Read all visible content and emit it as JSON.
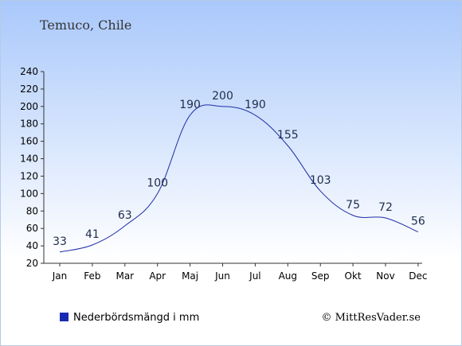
{
  "chart_data": {
    "type": "line",
    "title": "Temuco, Chile",
    "categories": [
      "Jan",
      "Feb",
      "Mar",
      "Apr",
      "Maj",
      "Jun",
      "Jul",
      "Aug",
      "Sep",
      "Okt",
      "Nov",
      "Dec"
    ],
    "series": [
      {
        "name": "Nederbördsmängd i mm",
        "values": [
          33,
          41,
          63,
          100,
          190,
          200,
          190,
          155,
          103,
          75,
          72,
          56
        ]
      }
    ],
    "data_labels": [
      "33",
      "41",
      "63",
      "100",
      "190",
      "200",
      "190",
      "155",
      "103",
      "75",
      "72",
      "56"
    ],
    "y_ticks": [
      "20",
      "40",
      "60",
      "80",
      "100",
      "120",
      "140",
      "160",
      "180",
      "200",
      "220",
      "240"
    ],
    "ylim": [
      20,
      240
    ],
    "grid": false,
    "legend_position": "bottom-left",
    "colors": {
      "line": "#1f2fa8",
      "legend_marker": "#1a2bb3",
      "background_top": "#a9c8fb",
      "background_bottom": "#ffffff",
      "axis": "#333333"
    }
  },
  "legend": {
    "label": "Nederbördsmängd i mm"
  },
  "credit": {
    "text": "© MittResVader.se"
  }
}
